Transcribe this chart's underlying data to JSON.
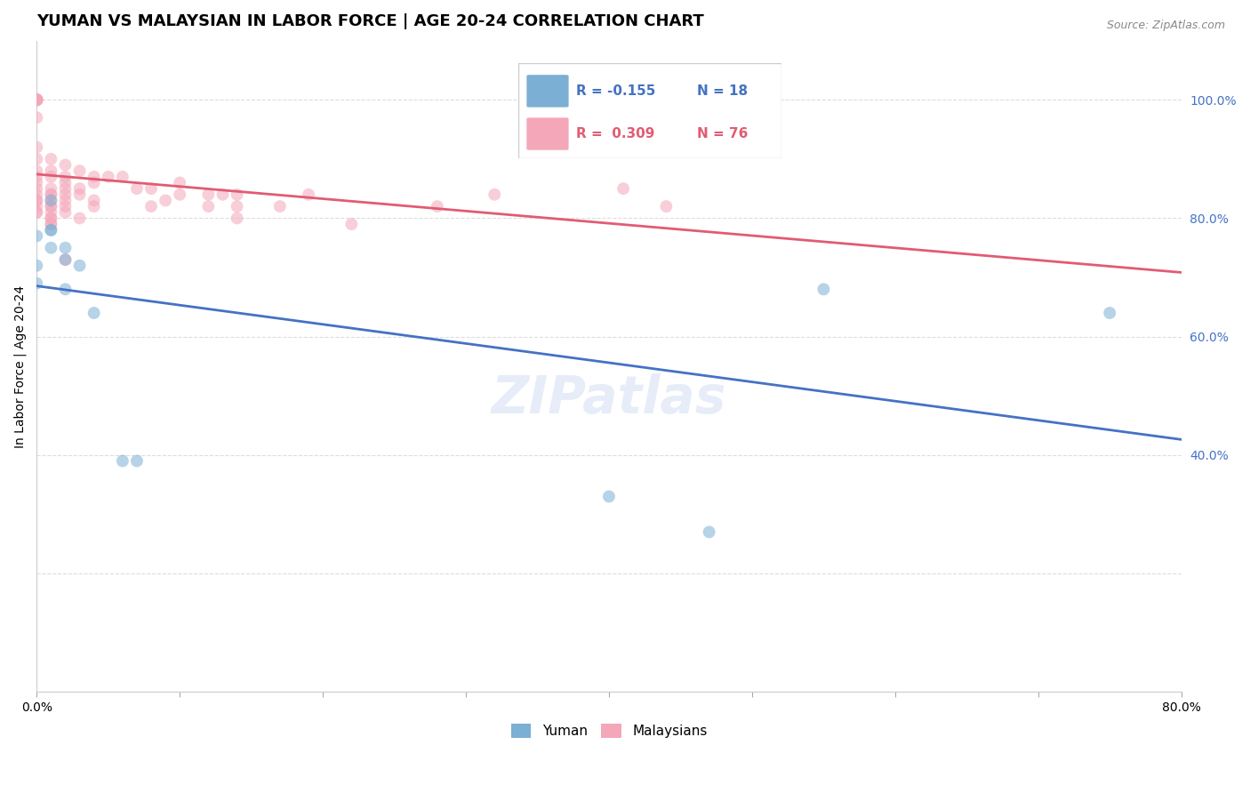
{
  "title": "YUMAN VS MALAYSIAN IN LABOR FORCE | AGE 20-24 CORRELATION CHART",
  "source": "Source: ZipAtlas.com",
  "ylabel": "In Labor Force | Age 20-24",
  "xmin": 0.0,
  "xmax": 0.8,
  "ymin": 0.0,
  "ymax": 1.1,
  "x_ticks": [
    0.0,
    0.1,
    0.2,
    0.3,
    0.4,
    0.5,
    0.6,
    0.7,
    0.8
  ],
  "y_ticks": [
    0.0,
    0.2,
    0.4,
    0.6,
    0.8,
    1.0
  ],
  "y_tick_labels": [
    "",
    "",
    "40.0%",
    "60.0%",
    "80.0%",
    "100.0%"
  ],
  "yuman_x": [
    0.0,
    0.0,
    0.0,
    0.01,
    0.01,
    0.01,
    0.01,
    0.02,
    0.02,
    0.02,
    0.03,
    0.04,
    0.06,
    0.07,
    0.4,
    0.47,
    0.55,
    0.75
  ],
  "yuman_y": [
    0.77,
    0.72,
    0.69,
    0.83,
    0.78,
    0.78,
    0.75,
    0.75,
    0.73,
    0.68,
    0.72,
    0.64,
    0.39,
    0.39,
    0.33,
    0.27,
    0.68,
    0.64
  ],
  "malaysian_x": [
    0.0,
    0.0,
    0.0,
    0.0,
    0.0,
    0.0,
    0.0,
    0.0,
    0.0,
    0.0,
    0.0,
    0.0,
    0.0,
    0.0,
    0.0,
    0.0,
    0.0,
    0.0,
    0.0,
    0.0,
    0.0,
    0.0,
    0.0,
    0.0,
    0.01,
    0.01,
    0.01,
    0.01,
    0.01,
    0.01,
    0.01,
    0.01,
    0.01,
    0.01,
    0.01,
    0.01,
    0.01,
    0.01,
    0.02,
    0.02,
    0.02,
    0.02,
    0.02,
    0.02,
    0.02,
    0.02,
    0.02,
    0.03,
    0.03,
    0.03,
    0.03,
    0.04,
    0.04,
    0.04,
    0.04,
    0.05,
    0.06,
    0.07,
    0.08,
    0.08,
    0.09,
    0.1,
    0.1,
    0.12,
    0.12,
    0.13,
    0.14,
    0.14,
    0.14,
    0.17,
    0.19,
    0.22,
    0.28,
    0.32,
    0.41,
    0.44
  ],
  "malaysian_y": [
    1.0,
    1.0,
    1.0,
    1.0,
    1.0,
    1.0,
    1.0,
    1.0,
    1.0,
    1.0,
    1.0,
    0.97,
    0.92,
    0.9,
    0.88,
    0.87,
    0.86,
    0.85,
    0.84,
    0.83,
    0.83,
    0.82,
    0.81,
    0.81,
    0.9,
    0.88,
    0.87,
    0.85,
    0.84,
    0.84,
    0.83,
    0.82,
    0.82,
    0.81,
    0.8,
    0.8,
    0.79,
    0.79,
    0.89,
    0.87,
    0.86,
    0.85,
    0.84,
    0.83,
    0.82,
    0.81,
    0.73,
    0.88,
    0.85,
    0.84,
    0.8,
    0.87,
    0.86,
    0.83,
    0.82,
    0.87,
    0.87,
    0.85,
    0.85,
    0.82,
    0.83,
    0.86,
    0.84,
    0.84,
    0.82,
    0.84,
    0.84,
    0.82,
    0.8,
    0.82,
    0.84,
    0.79,
    0.82,
    0.84,
    0.85,
    0.82
  ],
  "yuman_color": "#7BAFD4",
  "malaysian_color": "#F4A7B9",
  "yuman_line_color": "#4472C4",
  "malaysian_line_color": "#E05C73",
  "legend_R_yuman": "-0.155",
  "legend_N_yuman": "18",
  "legend_R_malay": "0.309",
  "legend_N_malay": "76",
  "background_color": "#ffffff",
  "watermark": "ZIPatlas",
  "marker_size": 10,
  "marker_alpha": 0.55,
  "title_fontsize": 13,
  "axis_label_fontsize": 10,
  "tick_fontsize": 10
}
